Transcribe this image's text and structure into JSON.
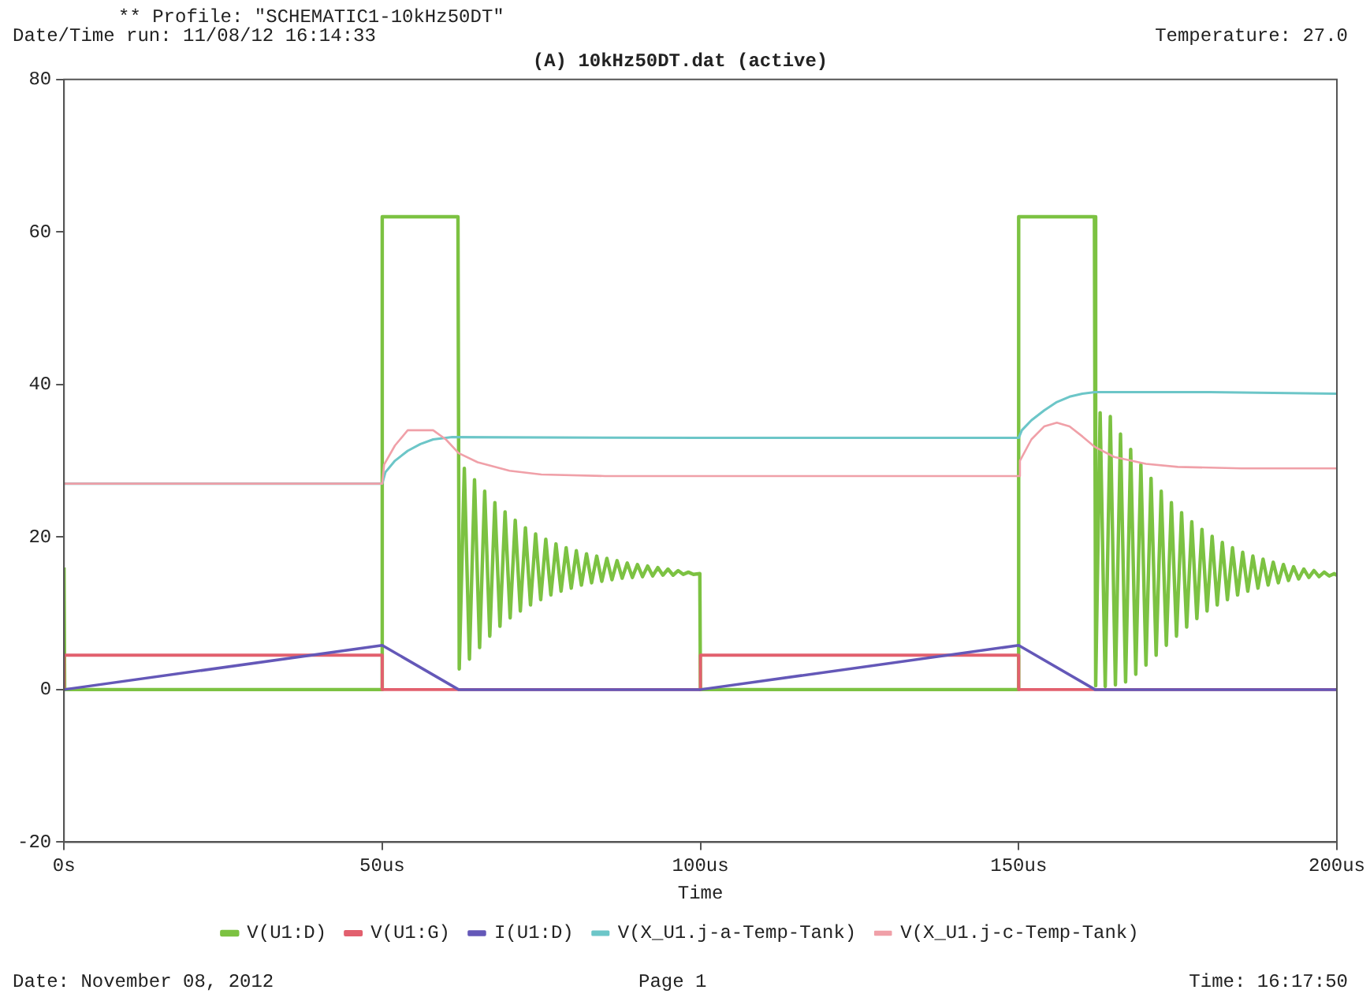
{
  "chart_data": {
    "type": "line",
    "title": "(A) 10kHz50DT.dat (active)",
    "xlabel": "Time",
    "annotations": [
      "** Profile: \"SCHEMATIC1-10kHz50DT\"",
      "Date/Time run: 11/08/12 16:14:33",
      "Temperature: 27.0",
      "Date: November 08, 2012",
      "Page 1",
      "Time: 16:17:50"
    ],
    "xlim": [
      0,
      200
    ],
    "xticks": [
      {
        "value": 0,
        "label": "0s"
      },
      {
        "value": 50,
        "label": "50us"
      },
      {
        "value": 100,
        "label": "100us"
      },
      {
        "value": 150,
        "label": "150us"
      },
      {
        "value": 200,
        "label": "200us"
      }
    ],
    "ylim": [
      -20,
      80
    ],
    "yticks": [
      -20,
      0,
      20,
      40,
      60,
      80
    ],
    "grid": false,
    "legend": "bottom",
    "series": [
      {
        "name": "V(U1:D)",
        "color": "#7cc242",
        "x": [
          0,
          0.1,
          50,
          50,
          61.9,
          62.1,
          62.9,
          63.7,
          64.5,
          65.3,
          66.1,
          66.9,
          67.7,
          68.5,
          69.3,
          70.1,
          70.9,
          71.7,
          72.5,
          73.3,
          74.1,
          74.9,
          75.7,
          76.5,
          77.3,
          78.1,
          78.9,
          79.7,
          80.5,
          81.3,
          82.1,
          82.9,
          83.7,
          84.5,
          85.3,
          86.1,
          86.9,
          87.7,
          88.5,
          89.3,
          90.1,
          90.9,
          91.7,
          92.5,
          93.3,
          94.1,
          94.9,
          95.7,
          96.5,
          97.3,
          98.1,
          98.9,
          99.9,
          100,
          150,
          150,
          161.9,
          162.1,
          162.8,
          163.6,
          164.4,
          165.2,
          166,
          166.8,
          167.6,
          168.4,
          169.2,
          170,
          170.8,
          171.6,
          172.4,
          173.2,
          174,
          174.8,
          175.6,
          176.4,
          177.2,
          178,
          178.8,
          179.6,
          180.4,
          181.2,
          182,
          182.8,
          183.6,
          184.4,
          185.2,
          186,
          186.8,
          187.6,
          188.4,
          189.2,
          190,
          190.8,
          191.6,
          192.4,
          193.2,
          194,
          194.8,
          195.6,
          196.4,
          197.2,
          198,
          198.8,
          199.6,
          200
        ],
        "values": [
          16,
          0,
          0,
          62,
          62,
          2.7,
          29,
          4,
          27.5,
          5.5,
          26,
          7,
          24.5,
          8.3,
          23.3,
          9.4,
          22.2,
          10.3,
          21.2,
          11.1,
          20.4,
          11.8,
          19.7,
          12.4,
          19.1,
          12.9,
          18.6,
          13.3,
          18.2,
          13.7,
          17.8,
          14,
          17.5,
          14.2,
          17.2,
          14.4,
          16.9,
          14.6,
          16.6,
          14.7,
          16.4,
          14.8,
          16.2,
          14.9,
          16,
          15,
          15.8,
          15,
          15.6,
          15.1,
          15.4,
          15.1,
          15.2,
          0,
          0,
          62,
          62,
          0.5,
          36.3,
          0.4,
          35.8,
          0.6,
          33.5,
          1,
          31.5,
          2,
          29.5,
          3.2,
          27.7,
          4.5,
          26,
          5.8,
          24.5,
          7,
          23.2,
          8.2,
          22,
          9.3,
          21,
          10.3,
          20.1,
          11.1,
          19.3,
          11.8,
          18.6,
          12.4,
          18,
          12.9,
          17.5,
          13.3,
          17.1,
          13.7,
          16.7,
          14,
          16.4,
          14.3,
          16.1,
          14.5,
          15.8,
          14.7,
          15.6,
          14.8,
          15.4,
          14.9,
          15.2,
          15
        ]
      },
      {
        "name": "V(U1:G)",
        "color": "#e2606e",
        "x": [
          0,
          0,
          50,
          50,
          100,
          100,
          150,
          150,
          200
        ],
        "values": [
          0,
          4.5,
          4.5,
          0,
          0,
          4.5,
          4.5,
          0,
          0
        ]
      },
      {
        "name": "I(U1:D)",
        "color": "#6458b8",
        "x": [
          0,
          50,
          62,
          100,
          150,
          162,
          200
        ],
        "values": [
          0,
          5.8,
          0,
          0,
          5.8,
          0,
          0
        ]
      },
      {
        "name": "V(X_U1.j-a-Temp-Tank)",
        "color": "#6cc6c8",
        "x": [
          0,
          50,
          50.5,
          52,
          54,
          56,
          58,
          61,
          100,
          150,
          150.5,
          152,
          154,
          156,
          158,
          160,
          162,
          180,
          200
        ],
        "values": [
          27,
          27,
          28.5,
          30,
          31.3,
          32.2,
          32.8,
          33.1,
          33,
          33,
          34,
          35.3,
          36.6,
          37.7,
          38.4,
          38.8,
          39,
          39,
          38.8
        ]
      },
      {
        "name": "V(X_U1.j-c-Temp-Tank)",
        "color": "#f0a0a8",
        "x": [
          0,
          50,
          50.3,
          52,
          54,
          58,
          60,
          62,
          65,
          70,
          75,
          85,
          150,
          150.2,
          152,
          154,
          156,
          158,
          160,
          162,
          165,
          170,
          175,
          185,
          200
        ],
        "values": [
          27,
          27,
          29.5,
          32,
          34,
          34,
          32.8,
          31,
          29.8,
          28.7,
          28.2,
          28,
          28,
          30,
          32.8,
          34.5,
          35,
          34.5,
          33.2,
          31.8,
          30.5,
          29.6,
          29.2,
          29,
          29
        ]
      }
    ]
  }
}
